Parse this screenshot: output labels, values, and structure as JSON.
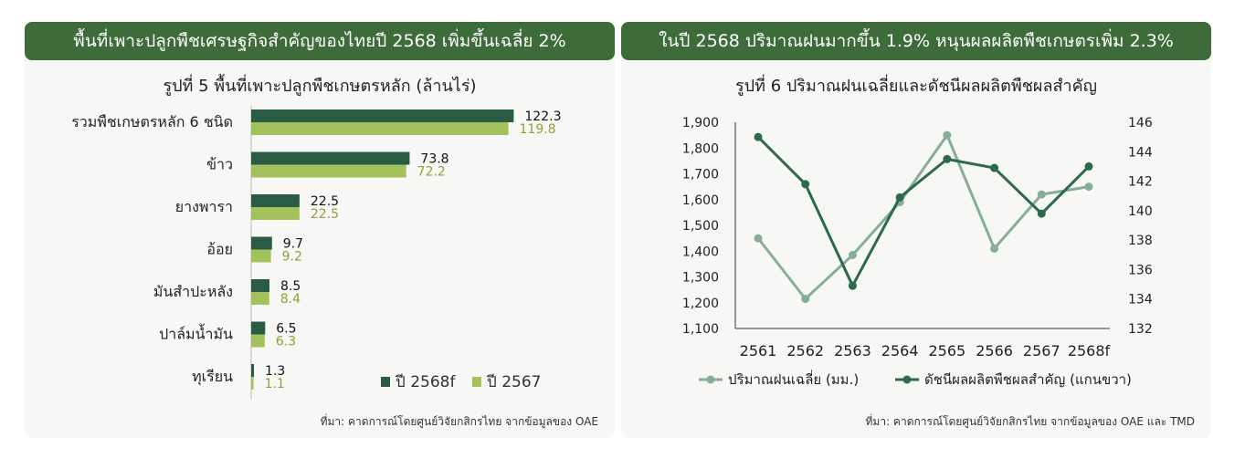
{
  "left": {
    "banner": "พื้นที่เพาะปลูกพืชเศรษฐกิจสำคัญของไทยปี 2568 เพิ่มขึ้นเฉลี่ย 2%",
    "source": "ที่มา: คาดการณ์โดยศูนย์วิจัยกสิกรไทย จากข้อมูลของ OAE",
    "chart_title": "รูปที่ 5 พื้นที่เพาะปลูกพืชเกษตรหลัก (ล้านไร่)"
  },
  "right": {
    "banner": "ในปี 2568 ปริมาณฝนมากขึ้น 1.9% หนุนผลผลิตพืชเกษตรเพิ่ม 2.3%",
    "source": "ที่มา: คาดการณ์โดยศูนย์วิจัยกสิกรไทย จากข้อมูลของ OAE และ TMD",
    "chart_title": "รูปที่ 6 ปริมาณฝนเฉลี่ยและดัชนีผลผลิตพืชผลสำคัญ"
  },
  "colors": {
    "banner_bg": "#3d6b3a",
    "bar_2568f": "#2a5c44",
    "bar_2567": "#a4c25c",
    "label_2567": "#8aa33a",
    "line_rain": "#88ad98",
    "line_index": "#2c6a4b"
  },
  "chart_data": [
    {
      "type": "bar",
      "orientation": "horizontal",
      "title": "รูปที่ 5 พื้นที่เพาะปลูกพืชเกษตรหลัก (ล้านไร่)",
      "categories": [
        "รวมพืชเกษตรหลัก 6 ชนิด",
        "ข้าว",
        "ยางพารา",
        "อ้อย",
        "มันสำปะหลัง",
        "ปาล์มน้ำมัน",
        "ทุเรียน"
      ],
      "series": [
        {
          "name": "ปี 2568f",
          "values": [
            122.3,
            73.8,
            22.5,
            9.7,
            8.5,
            6.5,
            1.3
          ],
          "labels": [
            "122.3",
            "73.8",
            "22.5",
            "9.7",
            "8.5",
            "6.5",
            "1.3"
          ]
        },
        {
          "name": "ปี 2567",
          "values": [
            119.8,
            72.2,
            22.5,
            9.2,
            8.4,
            6.3,
            1.1
          ],
          "labels": [
            "119.8",
            "72.2",
            "22.5",
            "9.2",
            "8.4",
            "6.3",
            "1.1"
          ]
        }
      ],
      "legend_position": "bottom-right",
      "grid": false
    },
    {
      "type": "line",
      "title": "รูปที่ 6 ปริมาณฝนเฉลี่ยและดัชนีผลผลิตพืชผลสำคัญ",
      "x": [
        "2561",
        "2562",
        "2563",
        "2564",
        "2565",
        "2566",
        "2567",
        "2568f"
      ],
      "series": [
        {
          "name": "ปริมาณฝนเฉลี่ย (มม.)",
          "axis": "left",
          "values": [
            1450,
            1215,
            1385,
            1590,
            1850,
            1410,
            1620,
            1650
          ]
        },
        {
          "name": "ดัชนีผลผลิตพืชผลสำคัญ (แกนขวา)",
          "axis": "right",
          "values": [
            145.0,
            141.8,
            134.9,
            140.9,
            143.5,
            142.9,
            139.8,
            143.0
          ]
        }
      ],
      "y_left": {
        "min": 1100,
        "max": 1900,
        "ticks": [
          "1,100",
          "1,200",
          "1,300",
          "1,400",
          "1,500",
          "1,600",
          "1,700",
          "1,800",
          "1,900"
        ]
      },
      "y_right": {
        "min": 132,
        "max": 146,
        "ticks": [
          "132",
          "134",
          "136",
          "138",
          "140",
          "142",
          "144",
          "146"
        ]
      },
      "legend_position": "bottom",
      "grid": false
    }
  ]
}
